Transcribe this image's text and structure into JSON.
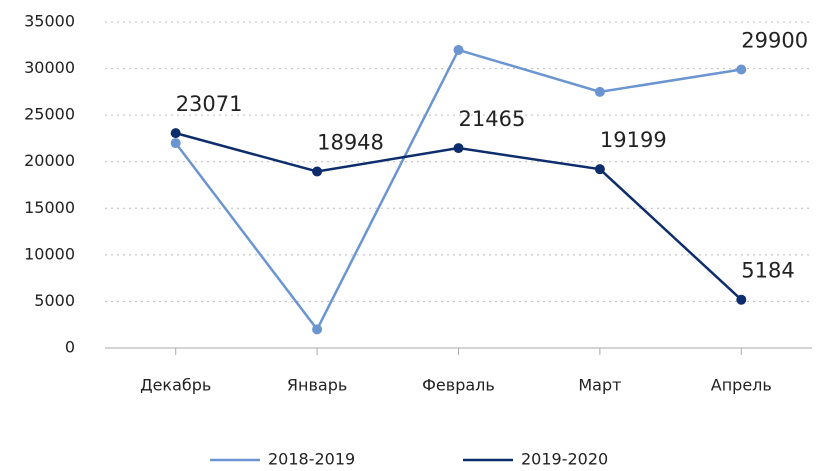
{
  "chart_data": {
    "type": "line",
    "categories": [
      "Декабрь",
      "Январь",
      "Февраль",
      "Март",
      "Апрель"
    ],
    "series": [
      {
        "name": "2018-2019",
        "color": "#6b95d1",
        "values": [
          22000,
          2000,
          32000,
          27500,
          29900
        ],
        "value_labels": [
          null,
          null,
          null,
          null,
          "29900"
        ]
      },
      {
        "name": "2019-2020",
        "color": "#0d2d6c",
        "values": [
          23071,
          18948,
          21465,
          19199,
          5184
        ],
        "value_labels": [
          "23071",
          "18948",
          "21465",
          "19199",
          "5184"
        ]
      }
    ],
    "ylim": [
      0,
      35000
    ],
    "yticks": [
      0,
      5000,
      10000,
      15000,
      20000,
      25000,
      30000,
      35000
    ],
    "grid": true
  }
}
